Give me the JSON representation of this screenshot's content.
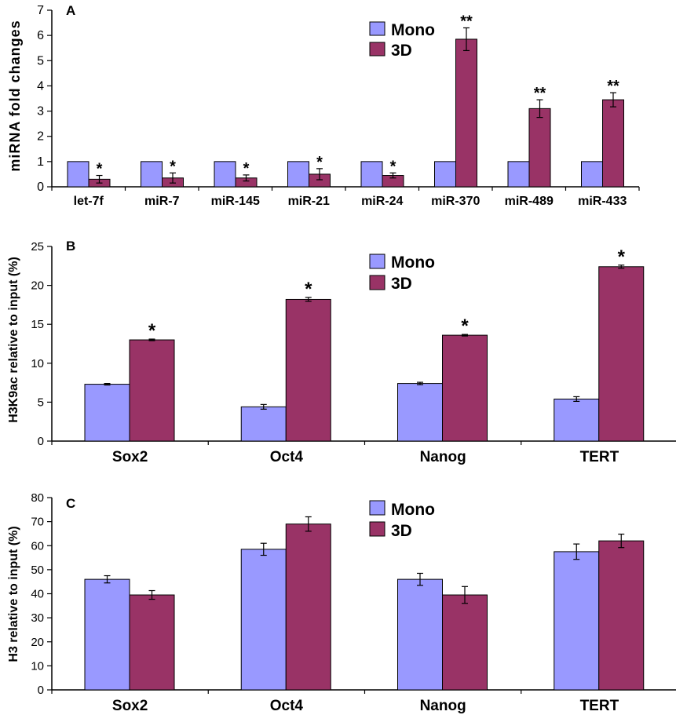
{
  "colors": {
    "mono": "#9999ff",
    "three_d": "#993366",
    "axis": "#000000"
  },
  "legend": {
    "series": [
      "Mono",
      "3D"
    ]
  },
  "chart_data": [
    {
      "type": "bar",
      "panel": "A",
      "ylabel": "miRNA fold changes",
      "ylim": [
        0,
        7
      ],
      "yticks": [
        "0",
        "1",
        "2",
        "3",
        "4",
        "5",
        "6",
        "7"
      ],
      "categories": [
        "let-7f",
        "miR-7",
        "miR-145",
        "miR-21",
        "miR-24",
        "miR-370",
        "miR-489",
        "miR-433"
      ],
      "series": [
        {
          "name": "Mono",
          "values": [
            1,
            1,
            1,
            1,
            1,
            1,
            1,
            1
          ],
          "errors": [
            0,
            0,
            0,
            0,
            0,
            0,
            0,
            0
          ]
        },
        {
          "name": "3D",
          "values": [
            0.3,
            0.35,
            0.35,
            0.5,
            0.45,
            5.85,
            3.1,
            3.45
          ],
          "errors": [
            0.15,
            0.2,
            0.12,
            0.22,
            0.1,
            0.45,
            0.35,
            0.28
          ]
        }
      ],
      "annotations": [
        "*",
        "*",
        "*",
        "*",
        "*",
        "**",
        "**",
        "**"
      ],
      "legend_position": "top-center",
      "grid": false
    },
    {
      "type": "bar",
      "panel": "B",
      "ylabel": "H3K9ac relative to input (%)",
      "ylim": [
        0,
        25
      ],
      "yticks": [
        "0",
        "5",
        "10",
        "15",
        "20",
        "25"
      ],
      "categories": [
        "Sox2",
        "Oct4",
        "Nanog",
        "TERT"
      ],
      "series": [
        {
          "name": "Mono",
          "values": [
            7.3,
            4.4,
            7.4,
            5.4
          ],
          "errors": [
            0.1,
            0.3,
            0.15,
            0.3
          ]
        },
        {
          "name": "3D",
          "values": [
            13.0,
            18.2,
            13.6,
            22.4
          ],
          "errors": [
            0.1,
            0.25,
            0.1,
            0.2
          ]
        }
      ],
      "annotations": [
        "*",
        "*",
        "*",
        "*"
      ],
      "legend_position": "top-center",
      "grid": false
    },
    {
      "type": "bar",
      "panel": "C",
      "ylabel": "H3 relative to input (%)",
      "ylim": [
        0,
        80
      ],
      "yticks": [
        "0",
        "10",
        "20",
        "30",
        "40",
        "50",
        "60",
        "70",
        "80"
      ],
      "categories": [
        "Sox2",
        "Oct4",
        "Nanog",
        "TERT"
      ],
      "series": [
        {
          "name": "Mono",
          "values": [
            46,
            58.5,
            46,
            57.5
          ],
          "errors": [
            1.5,
            2.5,
            2.5,
            3.2
          ]
        },
        {
          "name": "3D",
          "values": [
            39.5,
            69,
            39.5,
            62
          ],
          "errors": [
            1.8,
            3,
            3.5,
            2.8
          ]
        }
      ],
      "annotations": [
        "",
        "",
        "",
        ""
      ],
      "legend_position": "top-center",
      "grid": false
    }
  ]
}
